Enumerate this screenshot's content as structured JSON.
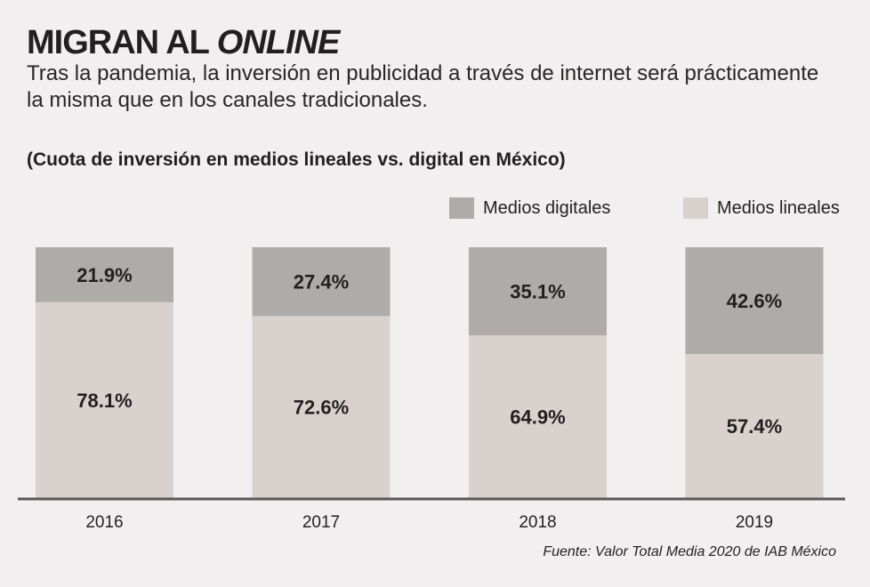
{
  "header": {
    "title_main": "MIGRAN AL ",
    "title_em": "ONLINE",
    "subtitle": "Tras la pandemia, la inversión en publicidad a través de internet será prácticamente la misma que en los canales tradicionales.",
    "chart_caption": "(Cuota de inversión en medios lineales vs. digital en México)"
  },
  "legend": [
    {
      "label": "Medios digitales",
      "color": "#afaba9"
    },
    {
      "label": "Medios lineales",
      "color": "#d9d1ce"
    }
  ],
  "source": "Fuente: Valor Total Media 2020 de IAB México",
  "chart_data": {
    "type": "bar",
    "stacked": true,
    "categories": [
      "2016",
      "2017",
      "2018",
      "2019"
    ],
    "series": [
      {
        "name": "Medios lineales",
        "values": [
          78.1,
          72.6,
          64.9,
          57.4
        ],
        "labels": [
          "78.1%",
          "72.6%",
          "64.9%",
          "57.4%"
        ],
        "color": "#d9d1ce"
      },
      {
        "name": "Medios digitales",
        "values": [
          21.9,
          27.4,
          35.1,
          42.6
        ],
        "labels": [
          "21.9%",
          "27.4%",
          "35.1%",
          "42.6%"
        ],
        "color": "#afaba9"
      }
    ],
    "title": "(Cuota de inversión en medios lineales vs. digital en México)",
    "xlabel": "",
    "ylabel": "",
    "ylim": [
      0,
      100
    ],
    "grid": false,
    "legend_position": "top-right"
  }
}
